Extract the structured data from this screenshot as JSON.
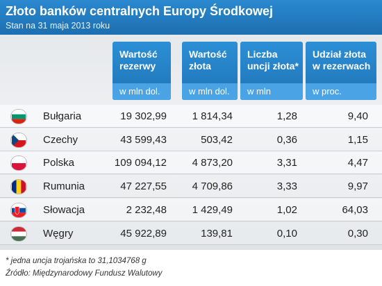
{
  "header": {
    "title": "Złoto banków centralnych Europy Środkowej",
    "subtitle": "Stan na 31 maja 2013 roku"
  },
  "chart_data": {
    "type": "table",
    "columns": [
      {
        "label": "Wartość\nrezerwy",
        "unit": "w mln dol."
      },
      {
        "label": "Wartość\nzłota",
        "unit": "w mln dol."
      },
      {
        "label": "Liczba\nuncji złota*",
        "unit": "w mln"
      },
      {
        "label": "Udział złota\nw rezerwach",
        "unit": "w proc."
      }
    ],
    "rows": [
      {
        "country": "Bułgaria",
        "flag": "bulgaria-flag-icon",
        "values": [
          "19 302,99",
          "1 814,34",
          "1,28",
          "9,40"
        ]
      },
      {
        "country": "Czechy",
        "flag": "czech-flag-icon",
        "values": [
          "43 599,43",
          "503,42",
          "0,36",
          "1,15"
        ]
      },
      {
        "country": "Polska",
        "flag": "poland-flag-icon",
        "values": [
          "109 094,12",
          "4 873,20",
          "3,31",
          "4,47"
        ]
      },
      {
        "country": "Rumunia",
        "flag": "romania-flag-icon",
        "values": [
          "47 227,55",
          "4 709,86",
          "3,33",
          "9,97"
        ]
      },
      {
        "country": "Słowacja",
        "flag": "slovakia-flag-icon",
        "values": [
          "2 232,48",
          "1 429,49",
          "1,02",
          "64,03"
        ]
      },
      {
        "country": "Węgry",
        "flag": "hungary-flag-icon",
        "values": [
          "45 922,89",
          "139,81",
          "0,10",
          "0,30"
        ]
      }
    ]
  },
  "footer": {
    "footnote": "* jedna uncja trojańska to 31,1034768 g",
    "source": "Źródło: Międzynarodowy Fundusz Walutowy"
  },
  "colors": {
    "header_blue": "#1f73b5",
    "unit_blue": "#4aa3e4"
  }
}
